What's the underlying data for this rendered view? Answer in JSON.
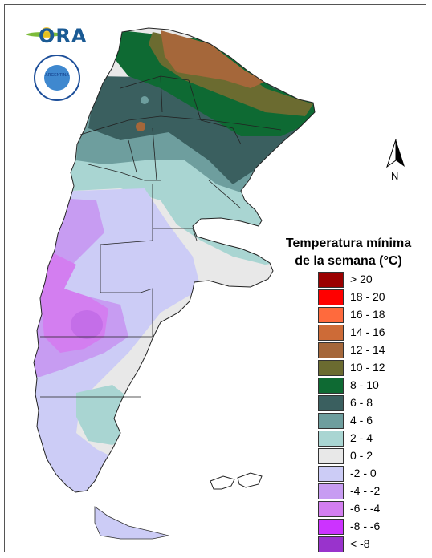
{
  "legend": {
    "title_line1": "Temperatura mínima",
    "title_line2": "de la semana (°C)",
    "items": [
      {
        "label": "> 20",
        "color": "#9b0000"
      },
      {
        "label": "18 - 20",
        "color": "#ff0000"
      },
      {
        "label": "16 - 18",
        "color": "#ff6a3d"
      },
      {
        "label": "14 - 16",
        "color": "#cd6b37"
      },
      {
        "label": "12 - 14",
        "color": "#a5673a"
      },
      {
        "label": "10 - 12",
        "color": "#6b6b30"
      },
      {
        "label": "8 - 10",
        "color": "#0e6a33"
      },
      {
        "label": "6 - 8",
        "color": "#3a5f5f"
      },
      {
        "label": "4 - 6",
        "color": "#6e9e9e"
      },
      {
        "label": "2 - 4",
        "color": "#a9d5d2"
      },
      {
        "label": "0 - 2",
        "color": "#e8e8e8"
      },
      {
        "label": "-2 - 0",
        "color": "#ccccf6"
      },
      {
        "label": "-4 - -2",
        "color": "#c79cf2"
      },
      {
        "label": "-6 - -4",
        "color": "#d37ef0"
      },
      {
        "label": "-8 - -6",
        "color": "#cc33ff"
      },
      {
        "label": "< -8",
        "color": "#9933cc"
      }
    ]
  },
  "north_arrow": {
    "label": "N"
  },
  "logos": {
    "ora": "ORA",
    "smn_ring": "ARGENTINA"
  }
}
